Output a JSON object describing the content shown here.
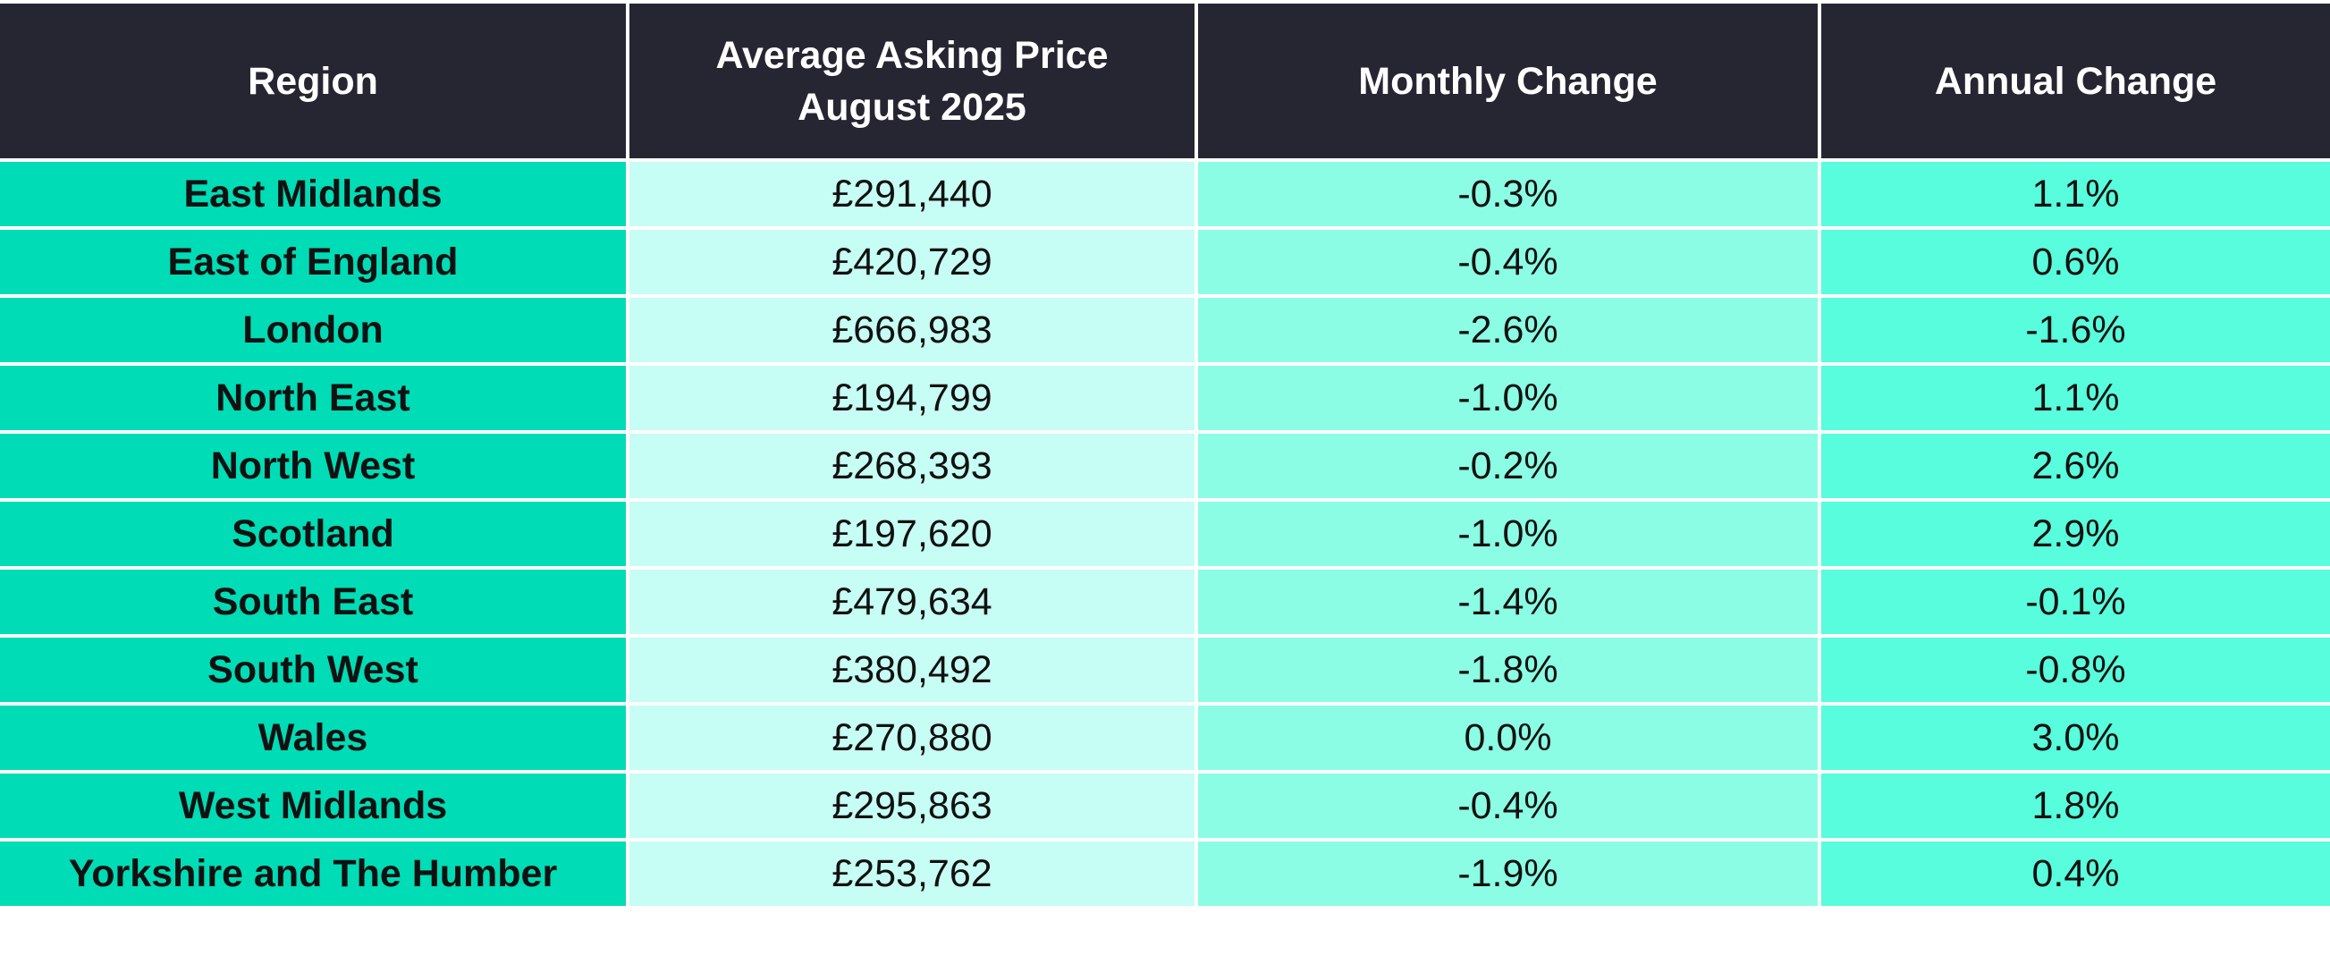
{
  "table": {
    "headers": {
      "region": "Region",
      "price_line1": "Average Asking Price",
      "price_line2": "August 2025",
      "monthly": "Monthly Change",
      "annual": "Annual Change"
    },
    "rows": [
      {
        "region": "East Midlands",
        "price": "£291,440",
        "monthly": "-0.3%",
        "annual": "1.1%"
      },
      {
        "region": "East of England",
        "price": "£420,729",
        "monthly": "-0.4%",
        "annual": "0.6%"
      },
      {
        "region": "London",
        "price": "£666,983",
        "monthly": "-2.6%",
        "annual": "-1.6%"
      },
      {
        "region": "North East",
        "price": "£194,799",
        "monthly": "-1.0%",
        "annual": "1.1%"
      },
      {
        "region": "North West",
        "price": "£268,393",
        "monthly": "-0.2%",
        "annual": "2.6%"
      },
      {
        "region": "Scotland",
        "price": "£197,620",
        "monthly": "-1.0%",
        "annual": "2.9%"
      },
      {
        "region": "South East",
        "price": "£479,634",
        "monthly": "-1.4%",
        "annual": "-0.1%"
      },
      {
        "region": "South West",
        "price": "£380,492",
        "monthly": "-1.8%",
        "annual": "-0.8%"
      },
      {
        "region": "Wales",
        "price": "£270,880",
        "monthly": "0.0%",
        "annual": "3.0%"
      },
      {
        "region": "West Midlands",
        "price": "£295,863",
        "monthly": "-0.4%",
        "annual": "1.8%"
      },
      {
        "region": "Yorkshire and The Humber",
        "price": "£253,762",
        "monthly": "-1.9%",
        "annual": "0.4%"
      }
    ]
  },
  "colors": {
    "header_bg": "#262633",
    "header_text": "#ffffff",
    "region_bg": "#00dcb5",
    "price_bg": "#c6fdf4",
    "monthly_bg": "#8bfde4",
    "annual_bg": "#57fddc"
  }
}
